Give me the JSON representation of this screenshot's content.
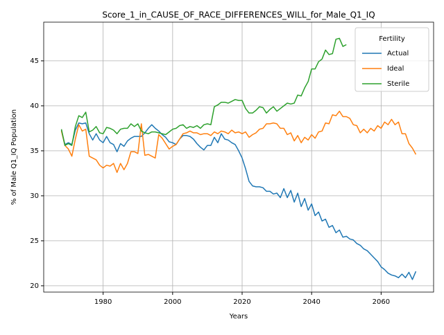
{
  "chart_data": {
    "type": "line",
    "title": "Score_1_in_CAUSE_OF_RACE_DIFFERENCES_WILL_for_Male_Q1_IQ",
    "xlabel": "Years",
    "ylabel": "% of Male Q1_IQ Population",
    "x": [
      1968,
      1969,
      1970,
      1971,
      1972,
      1973,
      1974,
      1975,
      1976,
      1977,
      1978,
      1979,
      1980,
      1981,
      1982,
      1983,
      1984,
      1985,
      1986,
      1987,
      1988,
      1989,
      1990,
      1991,
      1992,
      1993,
      1994,
      1995,
      1996,
      1997,
      1998,
      1999,
      2000,
      2001,
      2002,
      2003,
      2004,
      2005,
      2006,
      2007,
      2008,
      2009,
      2010,
      2011,
      2012,
      2013,
      2014,
      2015,
      2016,
      2017,
      2018,
      2019,
      2020,
      2021,
      2022,
      2023,
      2024,
      2025,
      2026,
      2027,
      2028,
      2029,
      2030,
      2031,
      2032,
      2033,
      2034,
      2035,
      2036,
      2037,
      2038,
      2039,
      2040,
      2041,
      2042,
      2043,
      2044,
      2045,
      2046,
      2047,
      2048,
      2049,
      2050,
      2051,
      2052,
      2053,
      2054,
      2055,
      2056,
      2057,
      2058,
      2059,
      2060,
      2061,
      2062,
      2063,
      2064,
      2065,
      2066,
      2067,
      2068,
      2069,
      2070
    ],
    "series": [
      {
        "name": "Actual",
        "color": "#1f77b4",
        "values": [
          37.3,
          35.7,
          35.9,
          35.7,
          37.3,
          38.1,
          38.0,
          38.1,
          36.9,
          36.2,
          36.9,
          36.2,
          35.9,
          36.6,
          35.9,
          35.7,
          34.9,
          35.8,
          35.5,
          36.1,
          36.4,
          36.6,
          36.6,
          36.6,
          37.0,
          37.5,
          37.9,
          37.5,
          37.2,
          36.8,
          36.5,
          36.0,
          35.9,
          35.7,
          36.3,
          36.7,
          36.7,
          36.6,
          36.3,
          35.8,
          35.4,
          35.1,
          35.6,
          35.6,
          36.5,
          35.9,
          36.9,
          36.3,
          36.2,
          35.9,
          35.7,
          35.0,
          34.2,
          33.0,
          31.6,
          31.1,
          31.0,
          31.0,
          30.9,
          30.5,
          30.5,
          30.2,
          30.3,
          29.8,
          30.8,
          29.8,
          30.6,
          29.3,
          30.3,
          28.8,
          29.7,
          28.4,
          29.1,
          27.8,
          28.2,
          27.2,
          27.4,
          26.5,
          26.7,
          25.9,
          26.2,
          25.4,
          25.5,
          25.2,
          25.1,
          24.7,
          24.5,
          24.1,
          23.9,
          23.5,
          23.1,
          22.7,
          22.1,
          21.8,
          21.4,
          21.2,
          21.1,
          20.9,
          21.3,
          20.9,
          21.5,
          20.7,
          21.6
        ]
      },
      {
        "name": "Ideal",
        "color": "#ff7f0e",
        "values": [
          37.2,
          35.6,
          35.2,
          34.4,
          36.3,
          37.9,
          37.2,
          37.4,
          34.4,
          34.2,
          34.0,
          33.4,
          33.1,
          33.4,
          33.3,
          33.6,
          32.6,
          33.6,
          32.9,
          33.6,
          34.9,
          34.9,
          34.7,
          38.0,
          34.5,
          34.6,
          34.4,
          34.2,
          36.8,
          36.4,
          35.8,
          35.2,
          35.5,
          35.7,
          36.3,
          36.9,
          37.0,
          37.2,
          37.0,
          37.0,
          36.8,
          36.9,
          36.9,
          36.7,
          37.1,
          36.9,
          37.2,
          37.1,
          36.9,
          37.3,
          37.0,
          37.1,
          36.9,
          37.1,
          36.5,
          36.8,
          37.0,
          37.4,
          37.5,
          38.0,
          38.0,
          38.1,
          38.0,
          37.5,
          37.5,
          36.8,
          37.0,
          36.1,
          36.7,
          35.9,
          36.5,
          36.2,
          36.8,
          36.4,
          37.1,
          37.2,
          38.1,
          38.0,
          39.0,
          38.9,
          39.4,
          38.8,
          38.8,
          38.6,
          37.9,
          37.8,
          37.0,
          37.4,
          37.0,
          37.5,
          37.2,
          37.8,
          37.5,
          38.2,
          37.9,
          38.5,
          37.9,
          38.2,
          36.9,
          36.9,
          35.8,
          35.3,
          34.6
        ]
      },
      {
        "name": "Sterile",
        "color": "#2ca02c",
        "values": [
          37.4,
          35.6,
          35.8,
          35.6,
          37.7,
          38.9,
          38.7,
          39.3,
          37.1,
          37.3,
          37.7,
          37.0,
          36.9,
          37.6,
          37.5,
          37.3,
          36.9,
          37.4,
          37.5,
          37.5,
          38.0,
          37.7,
          38.0,
          37.2,
          37.0,
          36.9,
          37.1,
          37.1,
          37.0,
          36.9,
          36.8,
          37.1,
          37.4,
          37.5,
          37.8,
          37.9,
          37.5,
          37.7,
          37.6,
          37.8,
          37.5,
          37.9,
          38.0,
          37.9,
          39.9,
          40.1,
          40.4,
          40.4,
          40.3,
          40.5,
          40.7,
          40.6,
          40.6,
          39.7,
          39.2,
          39.2,
          39.5,
          39.9,
          39.8,
          39.2,
          39.6,
          39.9,
          39.4,
          39.7,
          40.0,
          40.3,
          40.2,
          40.3,
          41.2,
          41.1,
          42.0,
          42.7,
          44.1,
          44.1,
          44.9,
          45.2,
          46.2,
          45.7,
          45.8,
          47.4,
          47.5,
          46.6,
          46.8,
          null,
          null,
          null,
          null,
          null,
          null,
          null,
          null,
          null,
          null,
          null,
          null,
          null,
          null,
          null,
          null,
          null,
          null,
          null,
          null
        ]
      }
    ],
    "xlim": [
      1962.9,
      2075.1
    ],
    "ylim": [
      19.3,
      49.3
    ],
    "xticks": [
      1980,
      2000,
      2020,
      2040,
      2060
    ],
    "yticks": [
      20,
      25,
      30,
      35,
      40,
      45
    ],
    "grid": true,
    "legend_title": "Fertility",
    "legend_loc": "upper right"
  }
}
